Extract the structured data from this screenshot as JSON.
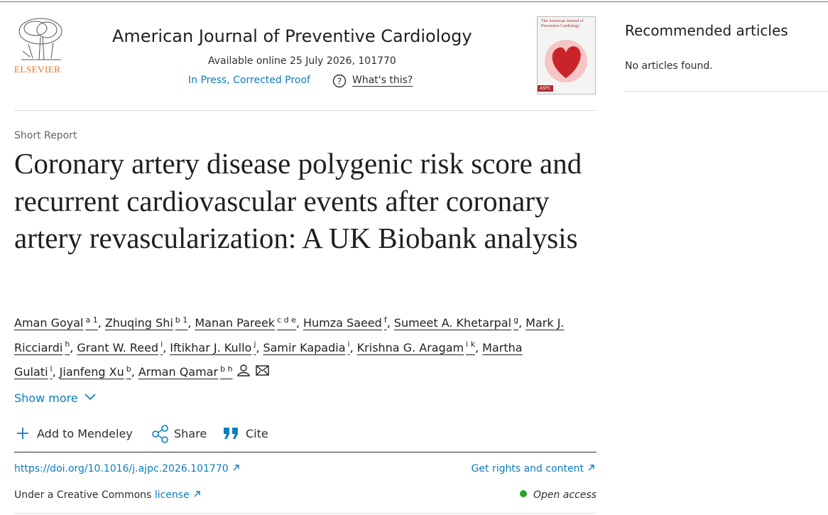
{
  "header": {
    "publisher": "ELSEVIER",
    "journal": "American Journal of Preventive Cardiology",
    "available": "Available online 25 July 2026, 101770",
    "status": "In Press, Corrected Proof",
    "whats_this": "What's this?"
  },
  "cover": {
    "title": "The American Journal of Preventive Cardiology",
    "badge": "ASPC"
  },
  "sidebar": {
    "title": "Recommended articles",
    "empty": "No articles found."
  },
  "article": {
    "type": "Short Report",
    "title": "Coronary artery disease polygenic risk score and recurrent cardiovascular events after coronary artery revascularization: A UK Biobank analysis",
    "separator": ",",
    "authors": [
      {
        "name": "Aman Goyal",
        "sup": "a 1"
      },
      {
        "name": "Zhuqing Shi",
        "sup": "b 1"
      },
      {
        "name": "Manan Pareek",
        "sup": "c d e"
      },
      {
        "name": "Humza Saeed",
        "sup": "f"
      },
      {
        "name": "Sumeet A. Khetarpal",
        "sup": "g"
      },
      {
        "name": "Mark J. Ricciardi",
        "sup": "h"
      },
      {
        "name": "Grant W. Reed",
        "sup": "i"
      },
      {
        "name": "Iftikhar J. Kullo",
        "sup": "j"
      },
      {
        "name": "Samir Kapadia",
        "sup": "i"
      },
      {
        "name": "Krishna G. Aragam",
        "sup": "i k"
      },
      {
        "name": "Martha Gulati",
        "sup": "l"
      },
      {
        "name": "Jianfeng Xu",
        "sup": "b"
      },
      {
        "name": "Arman Qamar",
        "sup": "b h"
      }
    ],
    "show_more": "Show more",
    "actions": [
      "Add to Mendeley",
      "Share",
      "Cite"
    ],
    "doi": "https://doi.org/10.1016/j.ajpc.2026.101770",
    "rights": "Get rights and content",
    "license_prefix": "Under a Creative Commons",
    "license_link": "license",
    "access": "Open access"
  }
}
